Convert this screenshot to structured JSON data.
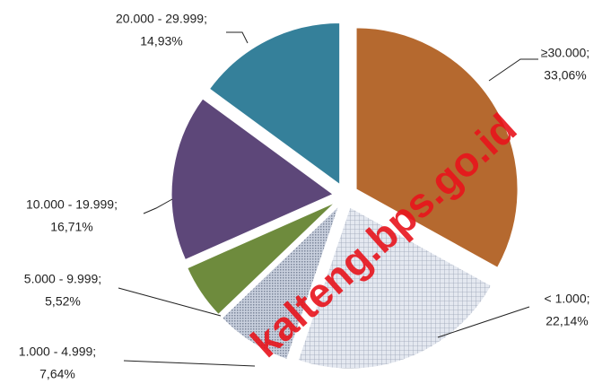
{
  "chart_data": {
    "type": "pie",
    "categories": [
      "≥30.000;",
      "< 1.000;",
      "1.000 - 4.999;",
      "5.000 - 9.999;",
      "10.000 - 19.999;",
      "20.000 - 29.999;"
    ],
    "values": [
      33.06,
      22.14,
      7.64,
      5.52,
      16.71,
      14.93
    ],
    "value_labels": [
      "33,06%",
      "22,14%",
      "7,64%",
      "5,52%",
      "16,71%",
      "14,93%"
    ],
    "colors": [
      "#b5692f",
      "url(#grid)",
      "url(#dots)",
      "#6e8b3d",
      "#5d4779",
      "#35809a"
    ],
    "watermark": "kalteng.bps.go.id"
  }
}
